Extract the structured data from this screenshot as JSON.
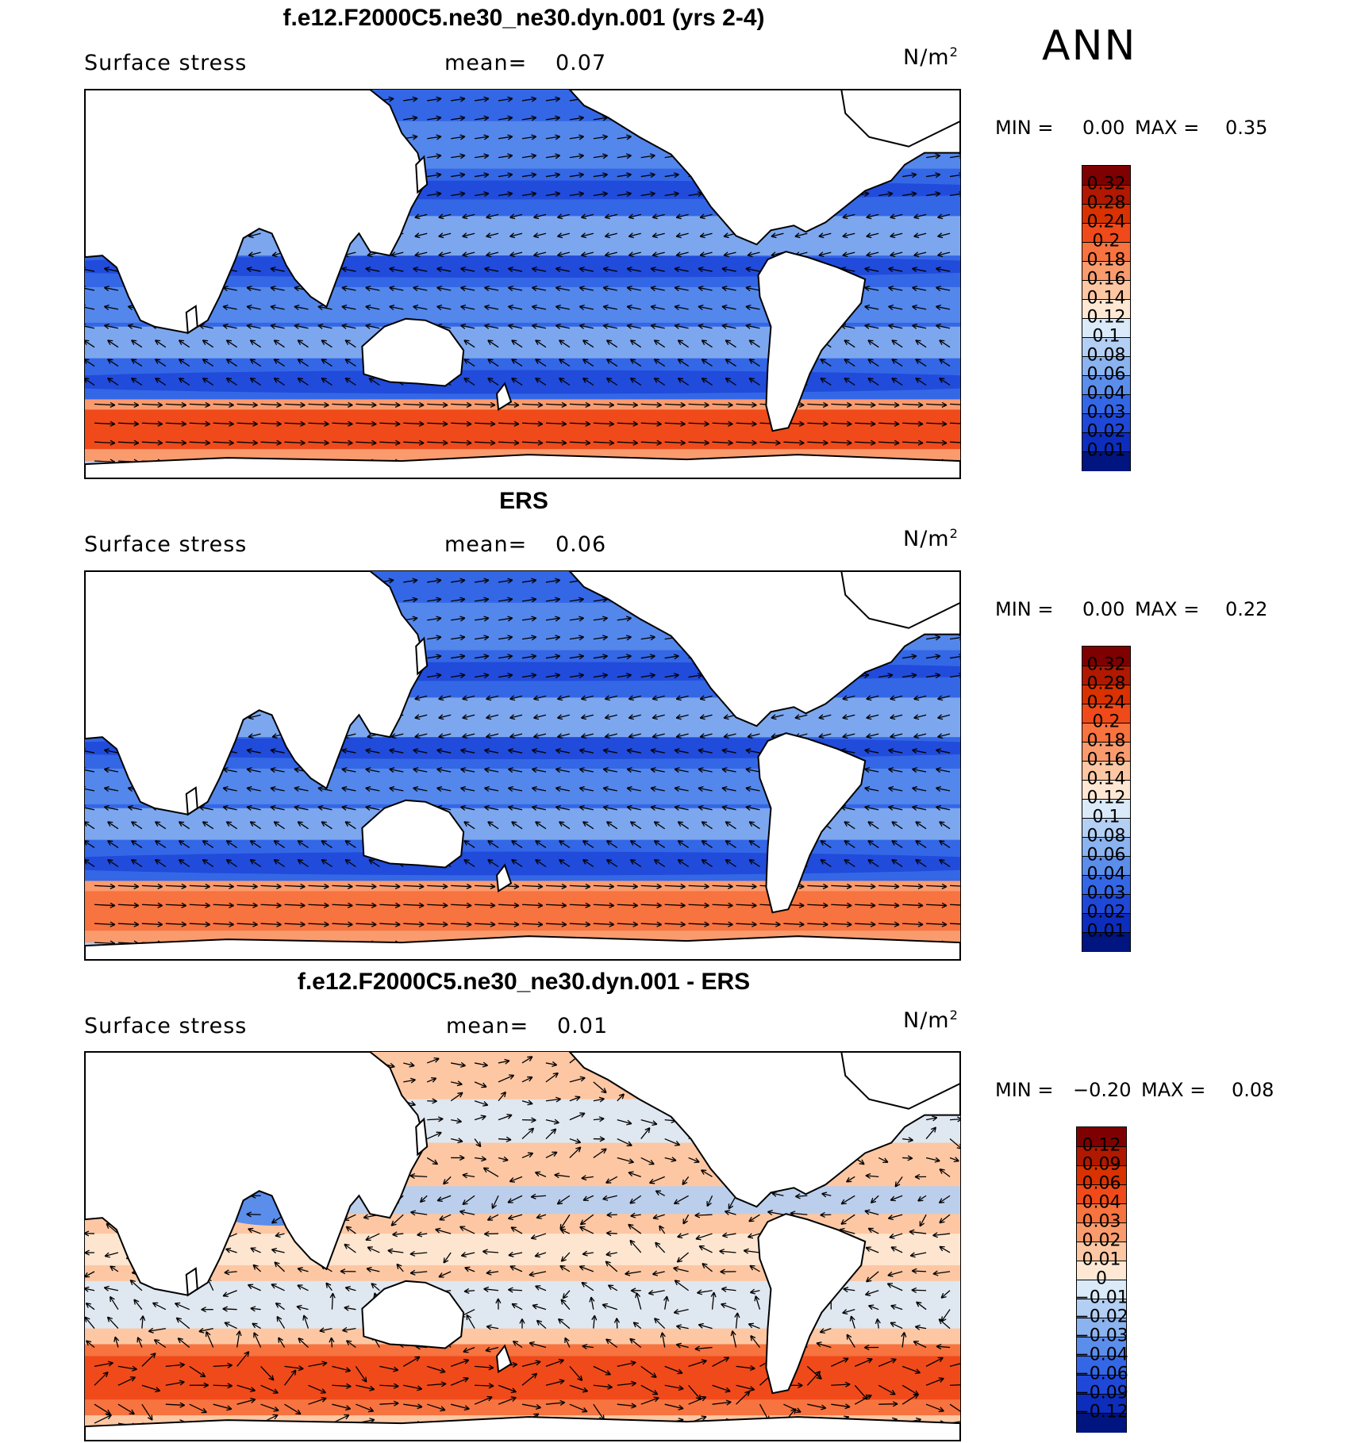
{
  "season": "ANN",
  "panels": [
    {
      "id": "model",
      "title": "f.e12.F2000C5.ne30_ne30.dyn.001 (yrs 2-4)",
      "variable": "Surface stress",
      "mean_label": "mean=",
      "mean_value": "0.07",
      "units_base": "N/m",
      "units_exp": "2",
      "min_label": "MIN =",
      "min_value": "0.00",
      "max_label": "MAX =",
      "max_value": "0.35",
      "colorbar": {
        "labels": [
          "0.32",
          "0.28",
          "0.24",
          "0.2",
          "0.18",
          "0.16",
          "0.14",
          "0.12",
          "0.1",
          "0.08",
          "0.06",
          "0.04",
          "0.03",
          "0.02",
          "0.01"
        ],
        "colors": [
          "#7f0000",
          "#b01900",
          "#d93200",
          "#f04a1a",
          "#f7733f",
          "#fa9b6e",
          "#fdc7a3",
          "#fee8d4",
          "#dbeaf8",
          "#b4cff4",
          "#8ab3f0",
          "#5b8deb",
          "#3467e6",
          "#1f48d8",
          "#0d2dbd",
          "#00157f"
        ]
      },
      "map_field": "positive",
      "features": {
        "southern_band": "strong",
        "mid_lat_bands": true
      }
    },
    {
      "id": "obs",
      "title": "ERS",
      "variable": "Surface stress",
      "mean_label": "mean=",
      "mean_value": "0.06",
      "units_base": "N/m",
      "units_exp": "2",
      "min_label": "MIN =",
      "min_value": "0.00",
      "max_label": "MAX =",
      "max_value": "0.22",
      "colorbar": {
        "labels": [
          "0.32",
          "0.28",
          "0.24",
          "0.2",
          "0.18",
          "0.16",
          "0.14",
          "0.12",
          "0.1",
          "0.08",
          "0.06",
          "0.04",
          "0.03",
          "0.02",
          "0.01"
        ],
        "colors": [
          "#7f0000",
          "#b01900",
          "#d93200",
          "#f04a1a",
          "#f7733f",
          "#fa9b6e",
          "#fdc7a3",
          "#fee8d4",
          "#dbeaf8",
          "#b4cff4",
          "#8ab3f0",
          "#5b8deb",
          "#3467e6",
          "#1f48d8",
          "#0d2dbd",
          "#00157f"
        ]
      },
      "map_field": "positive",
      "features": {
        "southern_band": "moderate",
        "mid_lat_bands": true
      }
    },
    {
      "id": "diff",
      "title": "f.e12.F2000C5.ne30_ne30.dyn.001 - ERS",
      "variable": "Surface stress",
      "mean_label": "mean=",
      "mean_value": "0.01",
      "units_base": "N/m",
      "units_exp": "2",
      "min_label": "MIN =",
      "min_value": "−0.20",
      "max_label": "MAX =",
      "max_value": "0.08",
      "colorbar": {
        "labels": [
          "0.12",
          "0.09",
          "0.06",
          "0.04",
          "0.03",
          "0.02",
          "0.01",
          "0",
          "−0.01",
          "−0.02",
          "−0.03",
          "−0.04",
          "−0.06",
          "−0.09",
          "−0.12"
        ],
        "colors": [
          "#7f0000",
          "#b01900",
          "#d93200",
          "#f04a1a",
          "#f7733f",
          "#fa9b6e",
          "#fdc7a3",
          "#fee8d4",
          "#dbeaf8",
          "#b4cff4",
          "#8ab3f0",
          "#5b8deb",
          "#3467e6",
          "#1f48d8",
          "#0d2dbd",
          "#00157f"
        ]
      },
      "map_field": "difference",
      "features": {
        "southern_band": "strong",
        "mid_lat_bands": false
      }
    }
  ]
}
